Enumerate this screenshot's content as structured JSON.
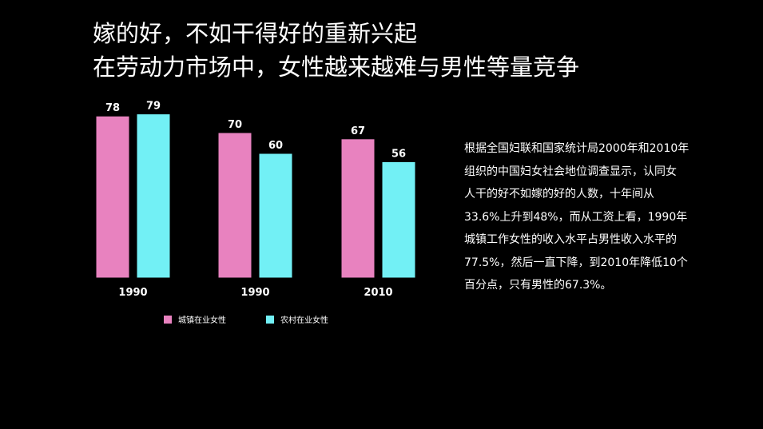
{
  "title": {
    "line1": "嫁的好，不如干得好的重新兴起",
    "line2": "在劳动力市场中，女性越来越难与男性等量竞争"
  },
  "colors": {
    "background": "#000000",
    "urban": "#e882bf",
    "rural": "#72f0f5",
    "text": "#ffffff"
  },
  "chart_data": {
    "type": "bar",
    "title": "",
    "xlabel": "",
    "ylabel": "",
    "categories": [
      "1990",
      "1990",
      "2010"
    ],
    "series": [
      {
        "name": "城镇在业女性",
        "values": [
          78,
          70,
          67
        ]
      },
      {
        "name": "农村在业女性",
        "values": [
          79,
          60,
          56
        ]
      }
    ],
    "ylim": [
      0,
      100
    ],
    "grid": false,
    "legend_position": "bottom"
  },
  "description": {
    "lines": [
      "根据全国妇联和国家统计局2000年和2010年",
      "组织的中国妇女社会地位调查显示，认同女",
      "人干的好不如嫁的好的人数，十年间从",
      "33.6%上升到48%，而从工资上看，1990年",
      "城镇工作女性的收入水平占男性收入水平的",
      "77.5%，然后一直下降，到2010年降低10个",
      "百分点，只有男性的67.3%。"
    ]
  }
}
